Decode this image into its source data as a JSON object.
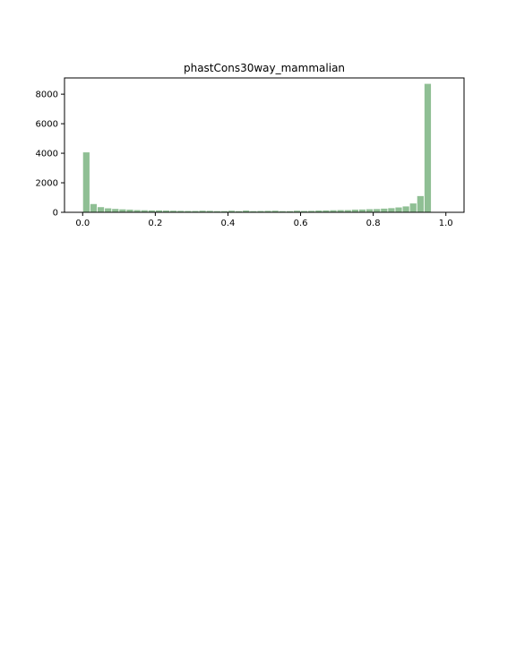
{
  "chart_data": {
    "type": "bar",
    "title": "phastCons30way_mammalian",
    "xlabel": "",
    "ylabel": "",
    "bin_start": 0.0,
    "bin_width": 0.02,
    "values": [
      4060,
      560,
      350,
      270,
      230,
      200,
      180,
      150,
      140,
      130,
      130,
      120,
      110,
      100,
      90,
      90,
      110,
      100,
      80,
      80,
      110,
      80,
      120,
      80,
      90,
      100,
      110,
      80,
      80,
      110,
      90,
      100,
      120,
      130,
      140,
      150,
      150,
      180,
      190,
      210,
      220,
      250,
      280,
      330,
      400,
      600,
      1100,
      8700
    ],
    "xlim": [
      -0.05,
      1.05
    ],
    "ylim": [
      0,
      9100
    ],
    "xticks": [
      0.0,
      0.2,
      0.4,
      0.6,
      0.8,
      1.0
    ],
    "xtick_labels": [
      "0.0",
      "0.2",
      "0.4",
      "0.6",
      "0.8",
      "1.0"
    ],
    "yticks": [
      0,
      2000,
      4000,
      6000,
      8000
    ],
    "ytick_labels": [
      "0",
      "2000",
      "4000",
      "6000",
      "8000"
    ],
    "bar_color": "#8fbf94",
    "grid": false,
    "legend": "none"
  }
}
